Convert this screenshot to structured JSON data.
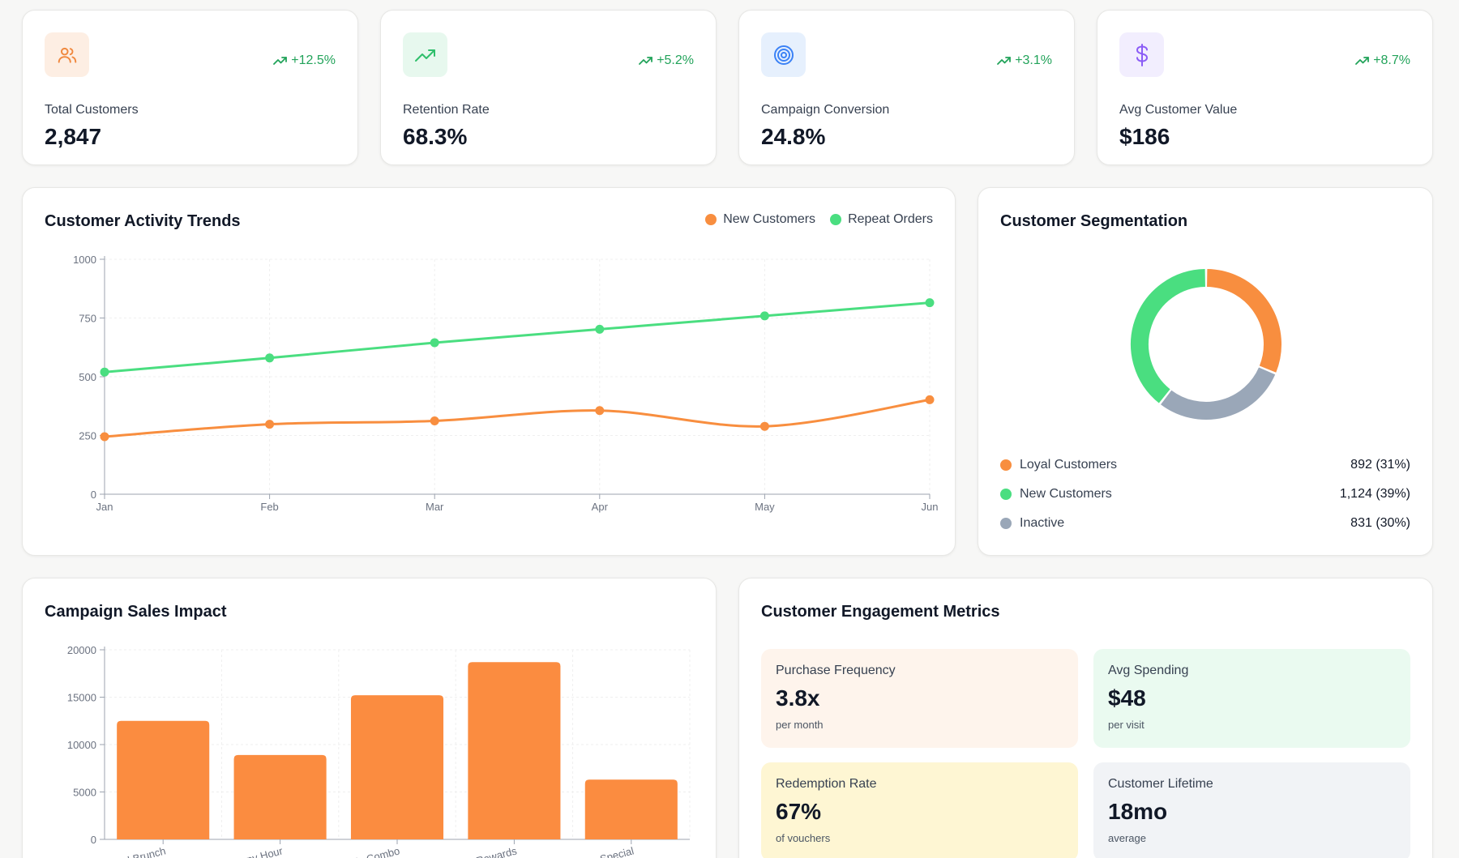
{
  "kpis": [
    {
      "label": "Total Customers",
      "value": "2,847",
      "change": "+12.5%",
      "icon": "users-icon",
      "icon_bg": "#fdeee3",
      "icon_color": "#f0883e"
    },
    {
      "label": "Retention Rate",
      "value": "68.3%",
      "change": "+5.2%",
      "icon": "trending-up-icon",
      "icon_bg": "#e7f8ee",
      "icon_color": "#2fbf6b"
    },
    {
      "label": "Campaign Conversion",
      "value": "24.8%",
      "change": "+3.1%",
      "icon": "target-icon",
      "icon_bg": "#e6f0fd",
      "icon_color": "#3b82f6"
    },
    {
      "label": "Avg Customer Value",
      "value": "$186",
      "change": "+8.7%",
      "icon": "dollar-icon",
      "icon_bg": "#f2eefe",
      "icon_color": "#8b5cf6"
    }
  ],
  "activity": {
    "title": "Customer Activity Trends",
    "legend": [
      {
        "name": "New Customers",
        "color": "#f88e3f"
      },
      {
        "name": "Repeat Orders",
        "color": "#4ade80"
      }
    ]
  },
  "segmentation": {
    "title": "Customer Segmentation",
    "items": [
      {
        "name": "Loyal Customers",
        "value": "892 (31%)",
        "color": "#f88e3f"
      },
      {
        "name": "New Customers",
        "value": "1,124 (39%)",
        "color": "#4ade80"
      },
      {
        "name": "Inactive",
        "value": "831 (30%)",
        "color": "#9aa7b8"
      }
    ]
  },
  "campaign": {
    "title": "Campaign Sales Impact"
  },
  "engagement": {
    "title": "Customer Engagement Metrics",
    "tiles": [
      {
        "label": "Purchase Frequency",
        "value": "3.8x",
        "sub": "per month",
        "bg": "#fef4ec"
      },
      {
        "label": "Avg Spending",
        "value": "$48",
        "sub": "per visit",
        "bg": "#eafaf0"
      },
      {
        "label": "Redemption Rate",
        "value": "67%",
        "sub": "of vouchers",
        "bg": "#fef6d3"
      },
      {
        "label": "Customer Lifetime",
        "value": "18mo",
        "sub": "average",
        "bg": "#f1f3f6"
      }
    ]
  },
  "chart_data": [
    {
      "type": "line",
      "title": "Customer Activity Trends",
      "categories": [
        "Jan",
        "Feb",
        "Mar",
        "Apr",
        "May",
        "Jun"
      ],
      "yticks": [
        "0",
        "250",
        "500",
        "750",
        "1000"
      ],
      "ylim": [
        0,
        1000
      ],
      "grid": true,
      "legend": "top-right",
      "series": [
        {
          "name": "New Customers",
          "color": "#f88e3f",
          "values": [
            245,
            298,
            312,
            356,
            289,
            402
          ]
        },
        {
          "name": "Repeat Orders",
          "color": "#4ade80",
          "values": [
            520,
            580,
            645,
            702,
            759,
            815
          ]
        }
      ]
    },
    {
      "type": "pie",
      "title": "Customer Segmentation",
      "donut": true,
      "series": [
        {
          "name": "Loyal Customers",
          "values": [
            892
          ],
          "color": "#f88e3f"
        },
        {
          "name": "Inactive",
          "values": [
            831
          ],
          "color": "#9aa7b8"
        },
        {
          "name": "New Customers",
          "values": [
            1124
          ],
          "color": "#4ade80"
        }
      ]
    },
    {
      "type": "bar",
      "title": "Campaign Sales Impact",
      "categories": [
        "Weekend Brunch",
        "Happy Hour",
        "Family Combo",
        "Loyalty Rewards",
        "Birthday Special"
      ],
      "values": [
        12500,
        8900,
        15200,
        18700,
        6300
      ],
      "yticks": [
        "0",
        "5000",
        "10000",
        "15000",
        "20000"
      ],
      "ylim": [
        0,
        20000
      ],
      "grid": true,
      "color": "#fb8c40"
    }
  ]
}
